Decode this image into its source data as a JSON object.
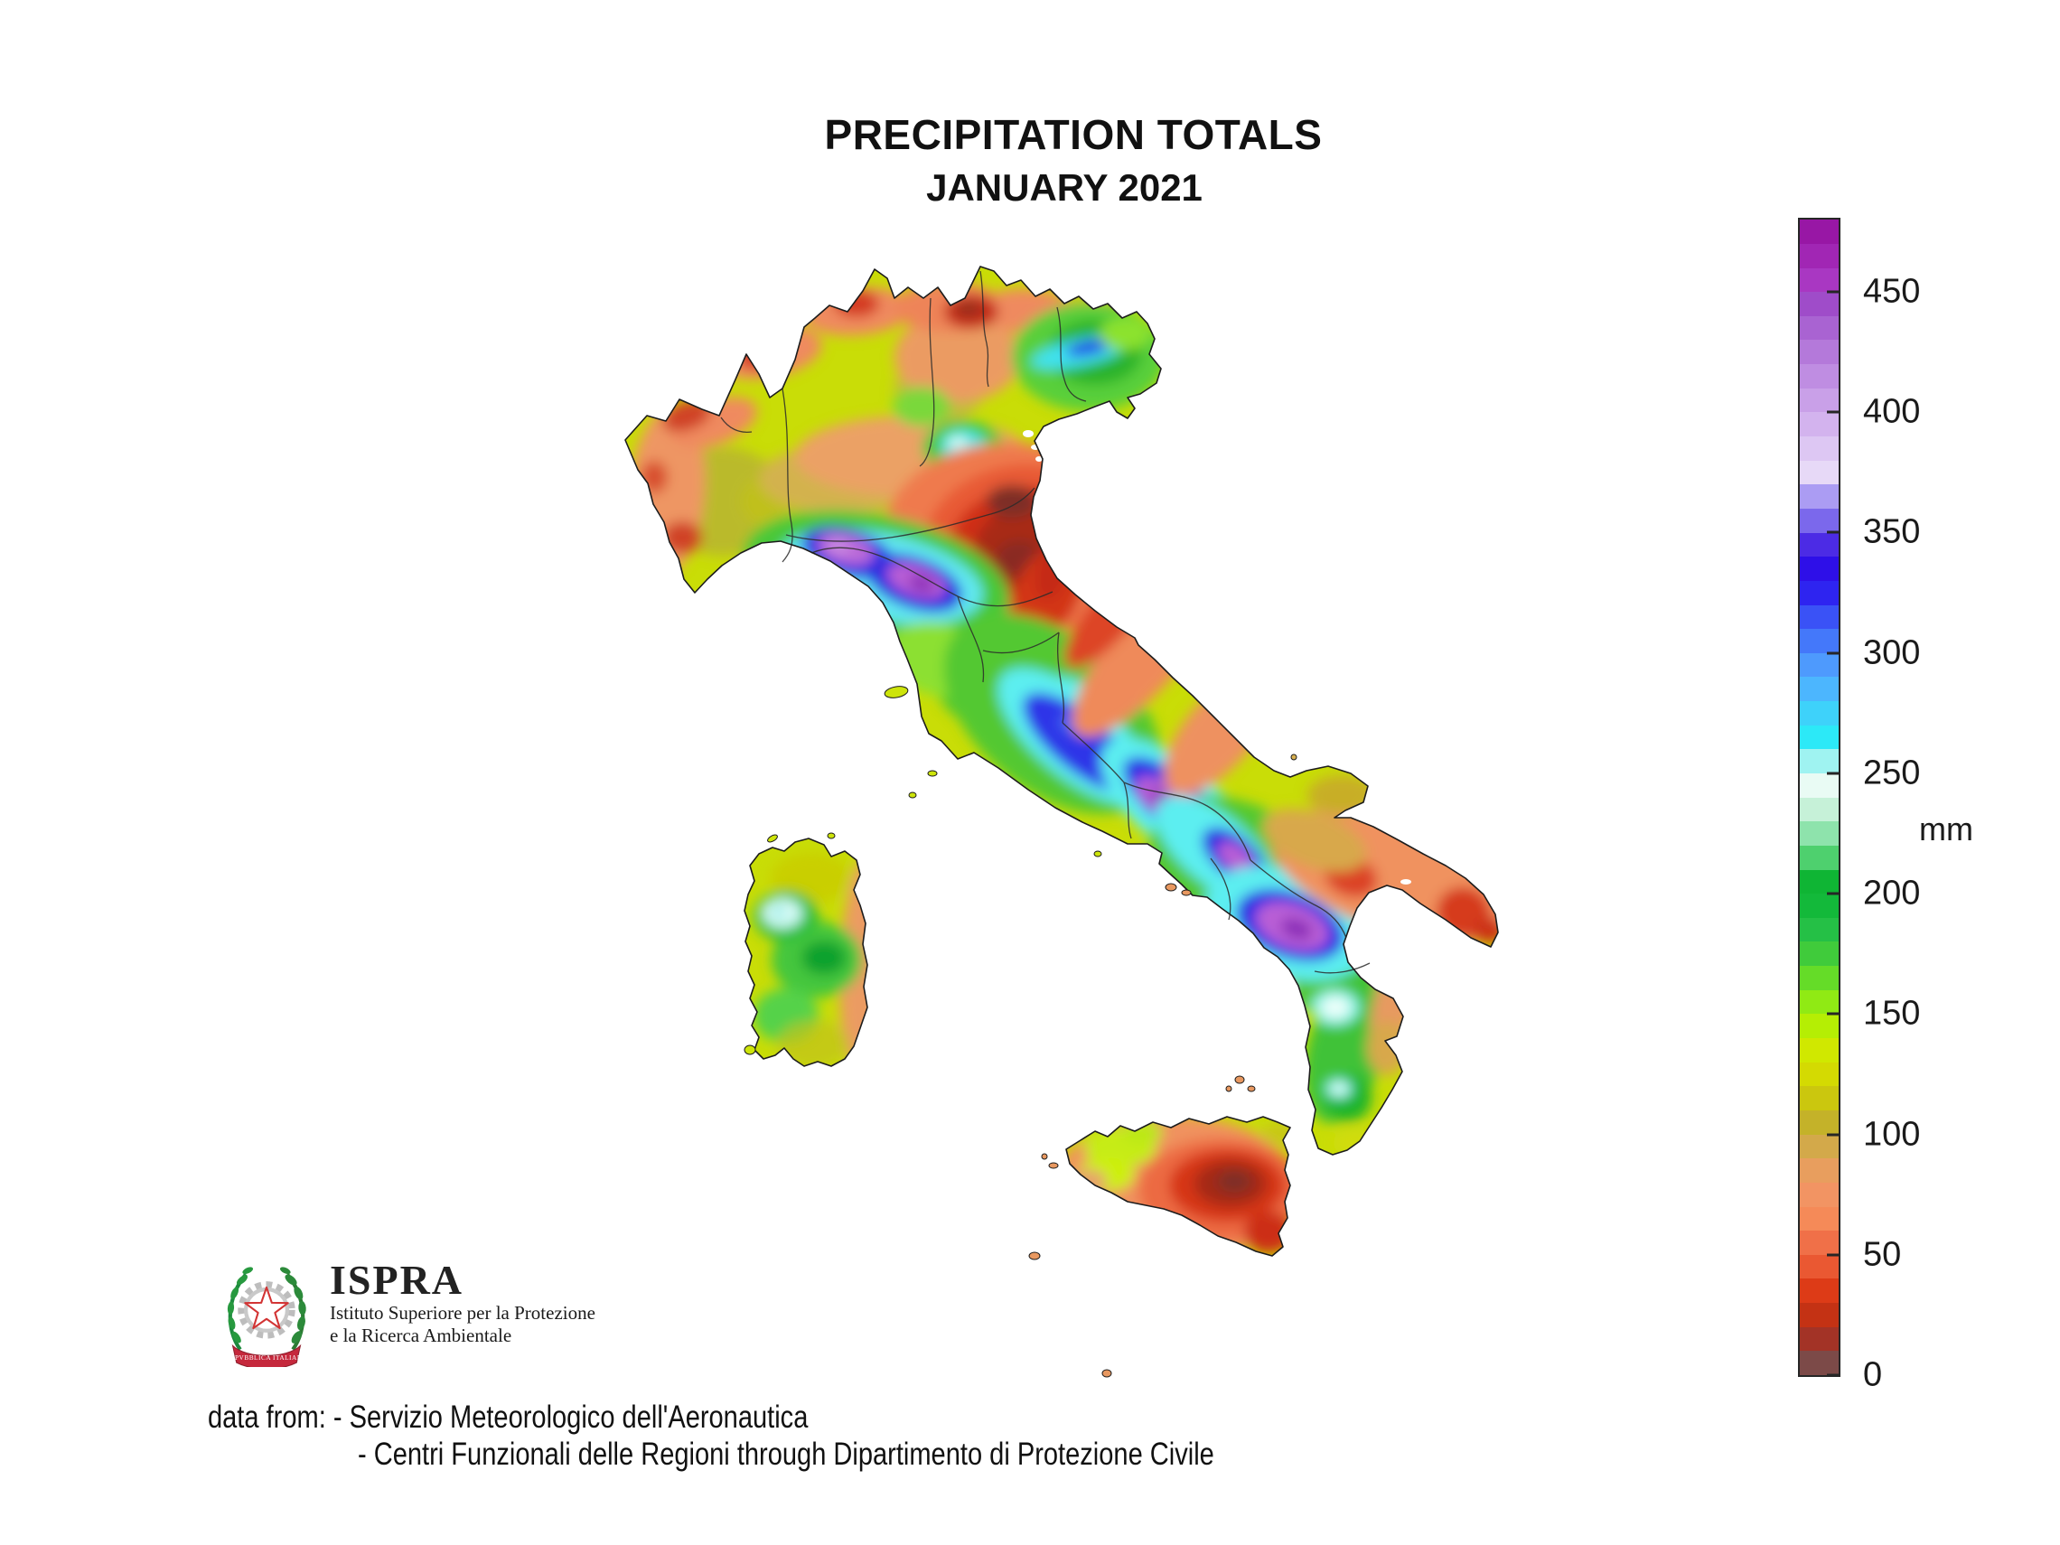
{
  "title": "PRECIPITATION TOTALS",
  "subtitle": "JANUARY 2021",
  "colorbar": {
    "unit": "mm",
    "min": 0,
    "max": 480,
    "ticks": [
      450,
      400,
      350,
      300,
      250,
      200,
      150,
      100,
      50,
      0
    ],
    "stops": [
      {
        "from": 0,
        "color": "#7c4a48"
      },
      {
        "from": 10,
        "color": "#a33326"
      },
      {
        "from": 20,
        "color": "#c43214"
      },
      {
        "from": 30,
        "color": "#dd3b17"
      },
      {
        "from": 40,
        "color": "#ea5832"
      },
      {
        "from": 50,
        "color": "#f07048"
      },
      {
        "from": 60,
        "color": "#f58a58"
      },
      {
        "from": 70,
        "color": "#f29463"
      },
      {
        "from": 80,
        "color": "#e89e5e"
      },
      {
        "from": 90,
        "color": "#d3a94a"
      },
      {
        "from": 100,
        "color": "#c4b229"
      },
      {
        "from": 110,
        "color": "#cbc70e"
      },
      {
        "from": 120,
        "color": "#d4da02"
      },
      {
        "from": 130,
        "color": "#d0e800"
      },
      {
        "from": 140,
        "color": "#b5ee04"
      },
      {
        "from": 150,
        "color": "#90ea14"
      },
      {
        "from": 160,
        "color": "#65dc28"
      },
      {
        "from": 170,
        "color": "#40cb3b"
      },
      {
        "from": 180,
        "color": "#25c046"
      },
      {
        "from": 190,
        "color": "#13b93a"
      },
      {
        "from": 200,
        "color": "#0fb534"
      },
      {
        "from": 210,
        "color": "#4ed06e"
      },
      {
        "from": 220,
        "color": "#8ee3ac"
      },
      {
        "from": 230,
        "color": "#c6f1d8"
      },
      {
        "from": 240,
        "color": "#e9fbf4"
      },
      {
        "from": 250,
        "color": "#9ff3f1"
      },
      {
        "from": 260,
        "color": "#2ce9f7"
      },
      {
        "from": 270,
        "color": "#3ed2fa"
      },
      {
        "from": 280,
        "color": "#4cb6fe"
      },
      {
        "from": 290,
        "color": "#4e9afd"
      },
      {
        "from": 300,
        "color": "#4478fa"
      },
      {
        "from": 310,
        "color": "#3a52f6"
      },
      {
        "from": 320,
        "color": "#2e24f0"
      },
      {
        "from": 330,
        "color": "#2e0fe8"
      },
      {
        "from": 340,
        "color": "#4c2be5"
      },
      {
        "from": 350,
        "color": "#7b68ec"
      },
      {
        "from": 360,
        "color": "#ab9cf3"
      },
      {
        "from": 370,
        "color": "#e7d9f7"
      },
      {
        "from": 380,
        "color": "#ddc7f3"
      },
      {
        "from": 390,
        "color": "#d3b3ee"
      },
      {
        "from": 400,
        "color": "#c9a0e8"
      },
      {
        "from": 410,
        "color": "#bf8de2"
      },
      {
        "from": 420,
        "color": "#b479da"
      },
      {
        "from": 430,
        "color": "#a963d2"
      },
      {
        "from": 440,
        "color": "#9f4cc9"
      },
      {
        "from": 450,
        "color": "#a937c2"
      },
      {
        "from": 460,
        "color": "#a126b4"
      },
      {
        "from": 470,
        "color": "#9817a5"
      }
    ]
  },
  "logo": {
    "emblem": "italian-republic-emblem",
    "name": "ISPRA",
    "tagline1": "Istituto Superiore per la Protezione",
    "tagline2": "e la Ricerca Ambientale",
    "ribbon": "REPVBBLICA ITALIANA"
  },
  "source": {
    "label": "data from:",
    "line1": "- Servizio Meteorologico dell'Aeronautica",
    "line2": "- Centri Funzionali delle Regioni through Dipartimento di Protezione Civile"
  }
}
